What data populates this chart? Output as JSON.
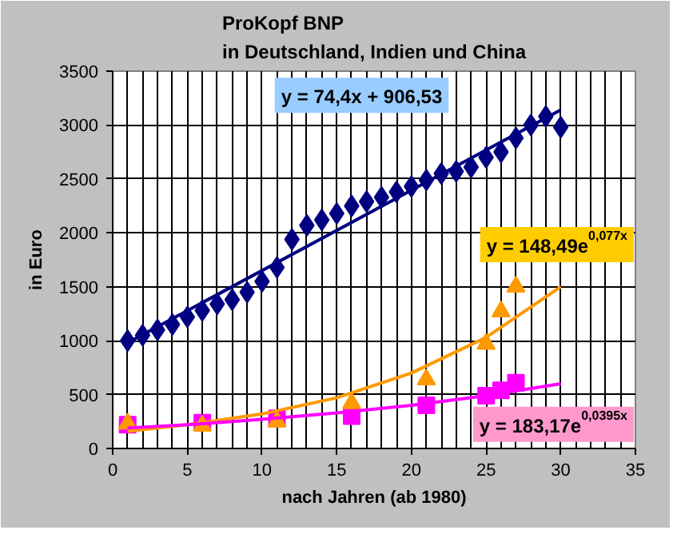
{
  "chart_data": {
    "type": "scatter",
    "title": "ProKopf BNP\nin Deutschland, Indien und China",
    "xlabel": "nach Jahren (ab 1980)",
    "ylabel": "in Euro",
    "xlim": [
      0,
      35
    ],
    "xticks": [
      0,
      5,
      10,
      15,
      20,
      25,
      30,
      35
    ],
    "ylim": [
      0,
      3500
    ],
    "yticks": [
      0,
      500,
      1000,
      1500,
      2000,
      2500,
      3000,
      3500
    ],
    "grid": true,
    "series": [
      {
        "marker": "diamond",
        "color": "#000080",
        "x": [
          1,
          2,
          3,
          4,
          5,
          6,
          7,
          8,
          9,
          10,
          11,
          12,
          13,
          14,
          15,
          16,
          17,
          18,
          19,
          20,
          21,
          22,
          23,
          24,
          25,
          26,
          27,
          28,
          29,
          30
        ],
        "values": [
          1000,
          1050,
          1100,
          1150,
          1220,
          1280,
          1340,
          1380,
          1450,
          1550,
          1680,
          1940,
          2070,
          2120,
          2180,
          2250,
          2290,
          2330,
          2380,
          2430,
          2490,
          2550,
          2570,
          2610,
          2700,
          2750,
          2880,
          3000,
          3080,
          2980
        ]
      },
      {
        "marker": "square",
        "color": "#ff00ff",
        "x": [
          1,
          6,
          11,
          16,
          21,
          25,
          26,
          27
        ],
        "values": [
          220,
          240,
          280,
          300,
          400,
          490,
          540,
          610
        ]
      },
      {
        "marker": "triangle",
        "color": "#ff9900",
        "x": [
          1,
          6,
          11,
          16,
          21,
          25,
          26,
          27
        ],
        "values": [
          230,
          210,
          250,
          420,
          640,
          970,
          1270,
          1500
        ]
      },
      {
        "type": "line",
        "marker": "none",
        "line_style": "solid",
        "color": "#000080",
        "x": [
          1,
          30
        ],
        "values": [
          980,
          3140
        ]
      },
      {
        "type": "line",
        "marker": "none",
        "line_style": "solid",
        "color": "#ff9900",
        "x": [
          1,
          5,
          10,
          15,
          20,
          25,
          30
        ],
        "values": [
          160,
          220,
          320,
          470,
          700,
          1030,
          1500
        ]
      },
      {
        "type": "line",
        "marker": "none",
        "line_style": "solid",
        "color": "#ff00ff",
        "x": [
          1,
          5,
          10,
          15,
          20,
          25,
          30
        ],
        "values": [
          190,
          220,
          270,
          330,
          400,
          490,
          600
        ]
      }
    ],
    "annotations": [
      "y = 74,4x + 906,53",
      "y = 148,49e$^{0,077x}$",
      "y = 183,17e$^{0,0395x}$"
    ]
  }
}
